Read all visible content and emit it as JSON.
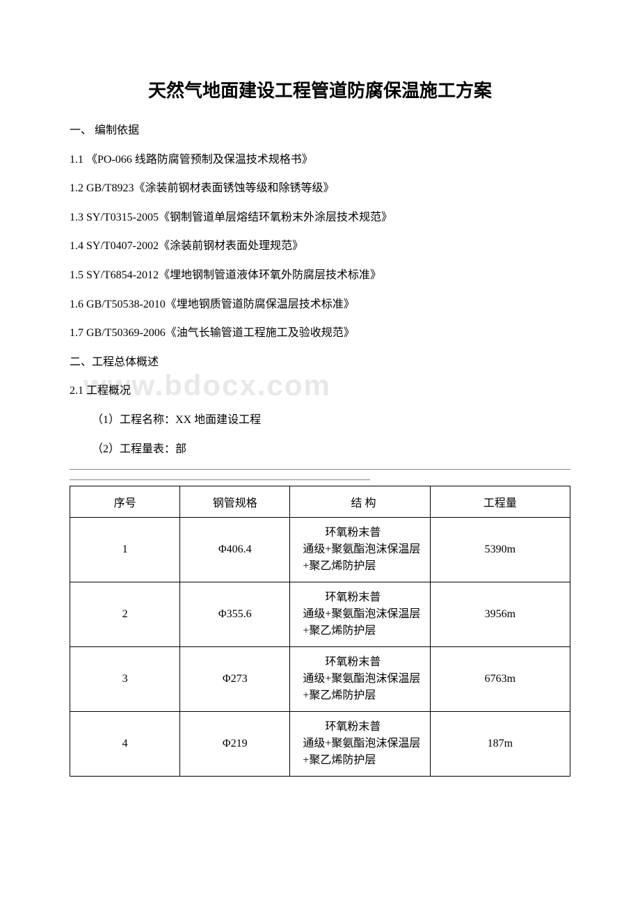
{
  "title": "天然气地面建设工程管道防腐保温施工方案",
  "section1_heading": "一、 编制依据",
  "refs": [
    "1.1 《PO-066 线路防腐管预制及保温技术规格书》",
    "1.2 GB/T8923《涂装前钢材表面锈蚀等级和除锈等级》",
    "1.3 SY/T0315-2005《钢制管道单层熔结环氧粉末外涂层技术规范》",
    "1.4 SY/T0407-2002《涂装前钢材表面处理规范》",
    "1.5 SY/T6854-2012《埋地钢制管道液体环氧外防腐层技术标准》",
    "1.6 GB/T50538-2010《埋地钢质管道防腐保温层技术标准》",
    "1.7 GB/T50369-2006《油气长输管道工程施工及验收规范》"
  ],
  "section2_heading": "二、工程总体概述",
  "section2_1": "2.1 工程概况",
  "proj_name": "（1）工程名称：XX 地面建设工程",
  "proj_qty": "（2）工程量表：部",
  "watermark": "www.bdocx.com",
  "table": {
    "headers": [
      "序号",
      "钢管规格",
      "结 构",
      "工程量"
    ],
    "struct_text_first": "环氧粉末普",
    "struct_text_rest": "通级+聚氨酯泡沫保温层+聚乙烯防护层",
    "rows": [
      {
        "num": "1",
        "spec": "Φ406.4",
        "qty": "5390m"
      },
      {
        "num": "2",
        "spec": "Φ355.6",
        "qty": "3956m"
      },
      {
        "num": "3",
        "spec": "Φ273",
        "qty": "6763m"
      },
      {
        "num": "4",
        "spec": "Φ219",
        "qty": "187m"
      }
    ]
  }
}
